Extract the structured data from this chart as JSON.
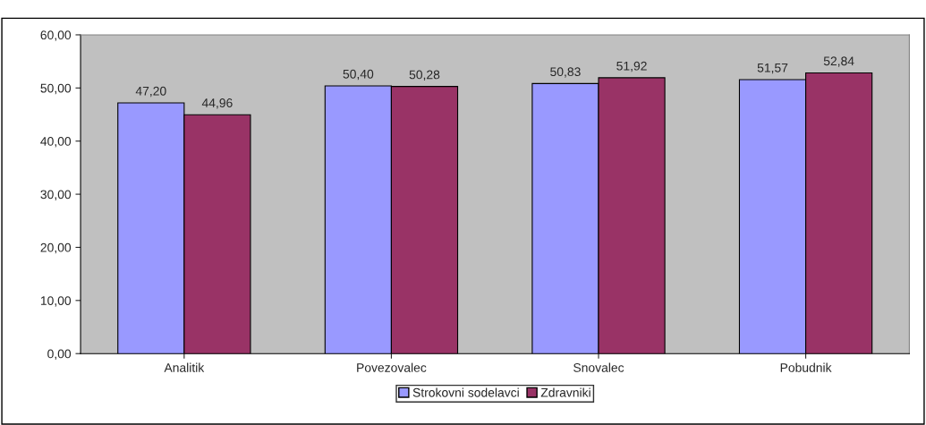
{
  "chart_data": {
    "type": "bar",
    "categories": [
      "Analitik",
      "Povezovalec",
      "Snovalec",
      "Pobudnik"
    ],
    "series": [
      {
        "name": "Strokovni sodelavci",
        "color": "#9999ff",
        "values": [
          47.2,
          50.4,
          50.83,
          51.57
        ],
        "value_labels": [
          "47,20",
          "50,40",
          "50,83",
          "51,57"
        ]
      },
      {
        "name": "Zdravniki",
        "color": "#993366",
        "values": [
          44.96,
          50.28,
          51.92,
          52.84
        ],
        "value_labels": [
          "44,96",
          "50,28",
          "51,92",
          "52,84"
        ]
      }
    ],
    "ylim": [
      0,
      60
    ],
    "yticks": [
      {
        "value": 0,
        "label": "0,00"
      },
      {
        "value": 10,
        "label": "10,00"
      },
      {
        "value": 20,
        "label": "20,00"
      },
      {
        "value": 30,
        "label": "30,00"
      },
      {
        "value": 40,
        "label": "40,00"
      },
      {
        "value": 50,
        "label": "50,00"
      },
      {
        "value": 60,
        "label": "60,00"
      }
    ],
    "grid": false,
    "legend": "bottom"
  }
}
